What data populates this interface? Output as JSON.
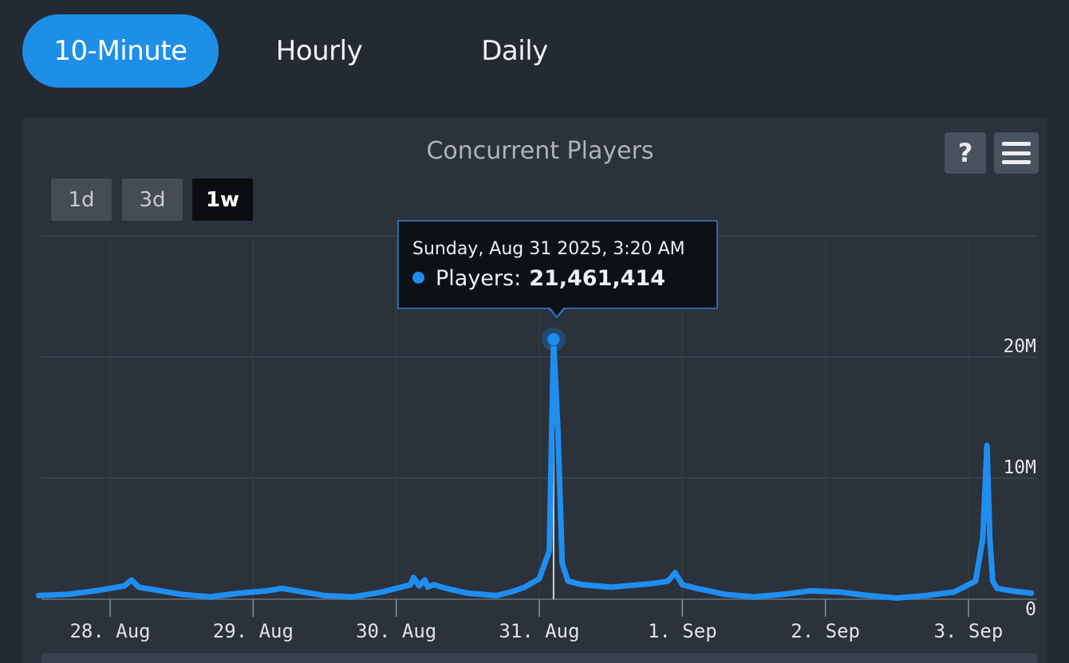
{
  "tabs": [
    {
      "label": "10-Minute",
      "active": true
    },
    {
      "label": "Hourly",
      "active": false
    },
    {
      "label": "Daily",
      "active": false
    }
  ],
  "toolbar": {
    "help_label": "?",
    "menu_icon": "hamburger-menu-icon"
  },
  "range_selector": {
    "buttons": [
      {
        "label": "1d",
        "active": false
      },
      {
        "label": "3d",
        "active": false
      },
      {
        "label": "1w",
        "active": true
      }
    ]
  },
  "tooltip": {
    "date": "Sunday, Aug 31 2025, 3:20 AM",
    "series_label": "Players:",
    "value": "21,461,414"
  },
  "colors": {
    "accent": "#1d8fe6",
    "series": "#1f8ef1",
    "background": "#242a33",
    "panel": "#2b323c"
  },
  "chart_data": {
    "type": "line",
    "title": "Concurrent Players",
    "xlabel": "",
    "ylabel": "",
    "x_tick_labels": [
      "28. Aug",
      "29. Aug",
      "30. Aug",
      "31. Aug",
      "1. Sep",
      "2. Sep",
      "3. Sep"
    ],
    "x_tick_days": [
      28,
      29,
      30,
      31,
      32,
      33,
      34
    ],
    "xlim": [
      27.52,
      34.48
    ],
    "y_ticks": [
      0,
      10000000,
      20000000
    ],
    "y_tick_labels": [
      "0",
      "10M",
      "20M"
    ],
    "ylim": [
      0,
      30000000
    ],
    "grid": true,
    "legend": "none",
    "series": [
      {
        "x": [
          27.5,
          27.7,
          27.9,
          28.1,
          28.15,
          28.2,
          28.3,
          28.5,
          28.7,
          28.9,
          29.1,
          29.2,
          29.3,
          29.5,
          29.7,
          29.9,
          30.1,
          30.12,
          30.16,
          30.2,
          30.22,
          30.26,
          30.35,
          30.5,
          30.7,
          30.8,
          30.9,
          31.0,
          31.07,
          31.1,
          31.13,
          31.16,
          31.2,
          31.3,
          31.5,
          31.8,
          31.9,
          31.95,
          32.0,
          32.1,
          32.3,
          32.5,
          32.7,
          32.9,
          33.1,
          33.3,
          33.5,
          33.7,
          33.9,
          34.05,
          34.1,
          34.13,
          34.15,
          34.17,
          34.2,
          34.3,
          34.44
        ],
        "y": [
          300000,
          400000,
          700000,
          1100000,
          1600000,
          1000000,
          800000,
          400000,
          200000,
          500000,
          700000,
          900000,
          700000,
          300000,
          200000,
          600000,
          1200000,
          1800000,
          1100000,
          1600000,
          1000000,
          1200000,
          900000,
          500000,
          300000,
          600000,
          1000000,
          1700000,
          4000000,
          21461414,
          14000000,
          3000000,
          1500000,
          1200000,
          1000000,
          1300000,
          1500000,
          2200000,
          1200000,
          900000,
          400000,
          200000,
          400000,
          700000,
          600000,
          300000,
          100000,
          300000,
          600000,
          1500000,
          5000000,
          12700000,
          5000000,
          1500000,
          900000,
          700000,
          500000
        ]
      }
    ],
    "highlight_point": {
      "x": 31.1,
      "y": 21461414
    }
  }
}
